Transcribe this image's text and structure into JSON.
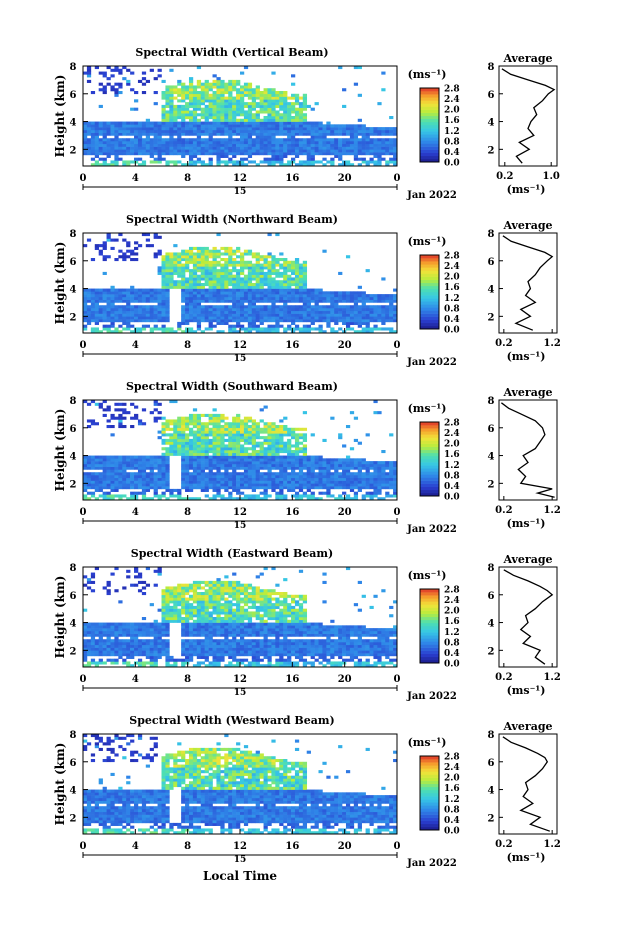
{
  "figure": {
    "xlabel": "Local Time",
    "date_label": "Jan 2022",
    "marker_label": "15",
    "ylabel": "Height (km)",
    "colorbar_unit": "(ms⁻¹)",
    "avg_title": "Average",
    "avg_unit": "(ms⁻¹)"
  },
  "chart_data": [
    {
      "type": "heatmap",
      "title": "Spectral Width (Vertical Beam)",
      "x_ticks": [
        "0",
        "4",
        "8",
        "12",
        "16",
        "20",
        "0"
      ],
      "y_ticks": [
        "2",
        "4",
        "6",
        "8"
      ],
      "xlim": [
        0,
        24
      ],
      "ylim": [
        0.8,
        8
      ],
      "colorbar_ticks": [
        "0.0",
        "0.4",
        "0.8",
        "1.2",
        "1.6",
        "2.0",
        "2.4",
        "2.8"
      ],
      "zlim": [
        0,
        2.8
      ],
      "avg": {
        "type": "line",
        "x_ticks": [
          "0.2",
          "1.0"
        ],
        "xlim": [
          0.1,
          1.1
        ],
        "y_ticks": [
          "2",
          "4",
          "6",
          "8"
        ],
        "ylim": [
          0.8,
          8
        ],
        "height": [
          1.0,
          1.5,
          2.0,
          2.5,
          3.0,
          3.5,
          4.0,
          4.5,
          5.0,
          5.5,
          6.0,
          6.3,
          6.6,
          7.0,
          7.4,
          7.8
        ],
        "width": [
          0.5,
          0.4,
          0.62,
          0.45,
          0.7,
          0.6,
          0.65,
          0.75,
          0.7,
          0.85,
          0.95,
          1.05,
          0.9,
          0.6,
          0.3,
          0.15
        ]
      }
    },
    {
      "type": "heatmap",
      "title": "Spectral Width (Northward Beam)",
      "x_ticks": [
        "0",
        "4",
        "8",
        "12",
        "16",
        "20",
        "0"
      ],
      "y_ticks": [
        "2",
        "4",
        "6",
        "8"
      ],
      "xlim": [
        0,
        24
      ],
      "ylim": [
        0.8,
        8
      ],
      "colorbar_ticks": [
        "0.0",
        "0.4",
        "0.8",
        "1.2",
        "1.6",
        "2.0",
        "2.4",
        "2.8"
      ],
      "zlim": [
        0,
        2.8
      ],
      "avg": {
        "type": "line",
        "x_ticks": [
          "0.2",
          "1.2"
        ],
        "xlim": [
          0.1,
          1.3
        ],
        "y_ticks": [
          "2",
          "4",
          "6",
          "8"
        ],
        "ylim": [
          0.8,
          8
        ],
        "height": [
          1.0,
          1.5,
          2.0,
          2.5,
          3.0,
          3.5,
          4.0,
          4.5,
          5.0,
          5.5,
          6.0,
          6.3,
          6.6,
          7.0,
          7.4,
          7.8
        ],
        "width": [
          0.8,
          0.45,
          0.75,
          0.55,
          0.85,
          0.65,
          0.75,
          0.7,
          0.85,
          0.95,
          1.1,
          1.2,
          1.05,
          0.7,
          0.35,
          0.18
        ]
      }
    },
    {
      "type": "heatmap",
      "title": "Spectral Width (Southward Beam)",
      "x_ticks": [
        "0",
        "4",
        "8",
        "12",
        "16",
        "20",
        "0"
      ],
      "y_ticks": [
        "2",
        "4",
        "6",
        "8"
      ],
      "xlim": [
        0,
        24
      ],
      "ylim": [
        0.8,
        8
      ],
      "colorbar_ticks": [
        "0.0",
        "0.4",
        "0.8",
        "1.2",
        "1.6",
        "2.0",
        "2.4",
        "2.8"
      ],
      "zlim": [
        0,
        2.8
      ],
      "avg": {
        "type": "line",
        "x_ticks": [
          "0.2",
          "1.2"
        ],
        "xlim": [
          0.1,
          1.3
        ],
        "y_ticks": [
          "2",
          "4",
          "6",
          "8"
        ],
        "ylim": [
          0.8,
          8
        ],
        "height": [
          1.0,
          1.3,
          1.6,
          2.0,
          2.5,
          3.0,
          3.5,
          4.0,
          4.5,
          5.0,
          5.5,
          6.0,
          6.5,
          7.0,
          7.4,
          7.8
        ],
        "width": [
          1.25,
          0.9,
          1.2,
          0.55,
          0.65,
          0.5,
          0.7,
          0.6,
          0.85,
          0.95,
          1.05,
          1.0,
          0.85,
          0.55,
          0.3,
          0.15
        ]
      }
    },
    {
      "type": "heatmap",
      "title": "Spectral Width (Eastward Beam)",
      "x_ticks": [
        "0",
        "4",
        "8",
        "12",
        "16",
        "20",
        "0"
      ],
      "y_ticks": [
        "2",
        "4",
        "6",
        "8"
      ],
      "xlim": [
        0,
        24
      ],
      "ylim": [
        0.8,
        8
      ],
      "colorbar_ticks": [
        "0.0",
        "0.4",
        "0.8",
        "1.2",
        "1.6",
        "2.0",
        "2.4",
        "2.8"
      ],
      "zlim": [
        0,
        2.8
      ],
      "avg": {
        "type": "line",
        "x_ticks": [
          "0.2",
          "1.2"
        ],
        "xlim": [
          0.1,
          1.3
        ],
        "y_ticks": [
          "2",
          "4",
          "6",
          "8"
        ],
        "ylim": [
          0.8,
          8
        ],
        "height": [
          1.0,
          1.5,
          2.0,
          2.5,
          3.0,
          3.5,
          4.0,
          4.5,
          5.0,
          5.5,
          6.0,
          6.3,
          6.6,
          7.0,
          7.4,
          7.8
        ],
        "width": [
          1.05,
          0.85,
          0.95,
          0.6,
          0.75,
          0.55,
          0.7,
          0.65,
          0.85,
          1.0,
          1.2,
          1.1,
          0.95,
          0.7,
          0.4,
          0.2
        ]
      }
    },
    {
      "type": "heatmap",
      "title": "Spectral Width (Westward Beam)",
      "x_ticks": [
        "0",
        "4",
        "8",
        "12",
        "16",
        "20",
        "0"
      ],
      "y_ticks": [
        "2",
        "4",
        "6",
        "8"
      ],
      "xlim": [
        0,
        24
      ],
      "ylim": [
        0.8,
        8
      ],
      "colorbar_ticks": [
        "0.0",
        "0.4",
        "0.8",
        "1.2",
        "1.6",
        "2.0",
        "2.4",
        "2.8"
      ],
      "zlim": [
        0,
        2.8
      ],
      "avg": {
        "type": "line",
        "x_ticks": [
          "0.2",
          "1.2"
        ],
        "xlim": [
          0.1,
          1.3
        ],
        "y_ticks": [
          "2",
          "4",
          "6",
          "8"
        ],
        "ylim": [
          0.8,
          8
        ],
        "height": [
          1.0,
          1.5,
          2.0,
          2.5,
          3.0,
          3.5,
          4.0,
          4.5,
          5.0,
          5.5,
          6.0,
          6.3,
          6.6,
          7.0,
          7.4,
          7.8
        ],
        "width": [
          1.15,
          0.75,
          0.95,
          0.55,
          0.8,
          0.6,
          0.7,
          0.65,
          0.85,
          1.0,
          1.1,
          1.05,
          0.9,
          0.65,
          0.35,
          0.18
        ]
      }
    }
  ]
}
